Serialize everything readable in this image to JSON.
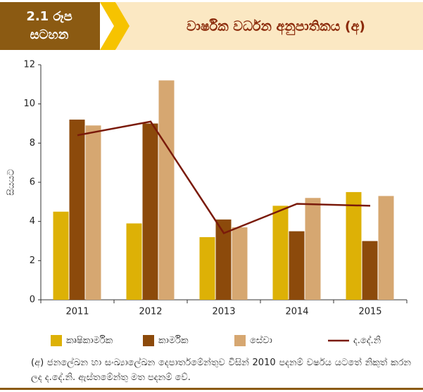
{
  "header": {
    "badge_lines": [
      "2.1 රූප",
      "සටහන"
    ]
  },
  "chart_data": {
    "type": "combo",
    "title": "වාර්ෂික වර්ධන අනුපාතිකය (අ)",
    "ylabel": "සියයට",
    "categories": [
      "2011",
      "2012",
      "2013",
      "2014",
      "2015"
    ],
    "series": [
      {
        "name": "කෘෂිකාර්මික",
        "color": "#ddb106",
        "mark": "bar",
        "values": [
          4.5,
          3.9,
          3.2,
          4.8,
          5.5
        ]
      },
      {
        "name": "කාර්මික",
        "color": "#8c4a0b",
        "mark": "bar",
        "values": [
          9.2,
          9.0,
          4.1,
          3.5,
          3.0
        ]
      },
      {
        "name": "සේවා",
        "color": "#d6a771",
        "mark": "bar",
        "values": [
          8.9,
          11.2,
          3.7,
          5.2,
          5.3
        ]
      },
      {
        "name": "ද.දේ.නි",
        "color": "#7a1a0a",
        "mark": "line",
        "values": [
          8.4,
          9.1,
          3.4,
          4.9,
          4.8
        ]
      }
    ],
    "ylim": [
      0,
      12
    ],
    "yticks": [
      0,
      2,
      4,
      6,
      8,
      10,
      12
    ],
    "grid": false,
    "note": "(අ) ජනලේඛන හා සංඛ්‍යාලේඛන දෙපාර්තමේන්තුව විසින් 2010 පදනම් වර්ෂය යටතේ නිකුත් කරන ලද ද.දේ.නි. ඇස්තමේන්තු මත පදනම් වේ."
  }
}
